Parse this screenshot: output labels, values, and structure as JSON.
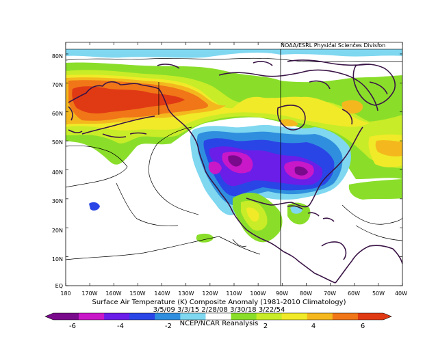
{
  "map": {
    "credit": "NOAA/ESRL Physical Sciences Division",
    "title": "Surface Air Temperature (K) Composite Anomaly (1981-2010 Climatology)",
    "dates": "3/5/09 3/3/15 2/28/08 3/30/18 3/22/54",
    "source": "NCEP/NCAR Reanalysis",
    "lat_labels": [
      "80N",
      "70N",
      "60N",
      "50N",
      "40N",
      "30N",
      "20N",
      "10N",
      "EQ"
    ],
    "lon_labels": [
      "180",
      "170W",
      "160W",
      "150W",
      "140W",
      "130W",
      "120W",
      "110W",
      "100W",
      "90W",
      "80W",
      "70W",
      "60W",
      "50W",
      "40W"
    ]
  },
  "colorbar": {
    "labels": [
      "-6",
      "-4",
      "-2",
      "2",
      "4",
      "6"
    ],
    "colors": [
      "#7a0a8c",
      "#c818c8",
      "#6a1ee8",
      "#2a45e6",
      "#2f8fde",
      "#7fd7f0",
      "#ffffff",
      "#8ade2a",
      "#c8ec28",
      "#f0ea28",
      "#f4b81e",
      "#f07618",
      "#e03a14"
    ]
  },
  "palette": {
    "coast": "#3a1446",
    "contour": "#000000",
    "pos1": "#8ade2a",
    "pos2": "#c8ec28",
    "pos3": "#f0ea28",
    "pos4": "#f4b81e",
    "pos5": "#f07618",
    "pos6": "#e03a14",
    "neg1": "#7fd7f0",
    "neg2": "#2f8fde",
    "neg3": "#2a45e6",
    "neg4": "#6a1ee8",
    "neg5": "#c818c8",
    "neg6": "#7a0a8c"
  }
}
